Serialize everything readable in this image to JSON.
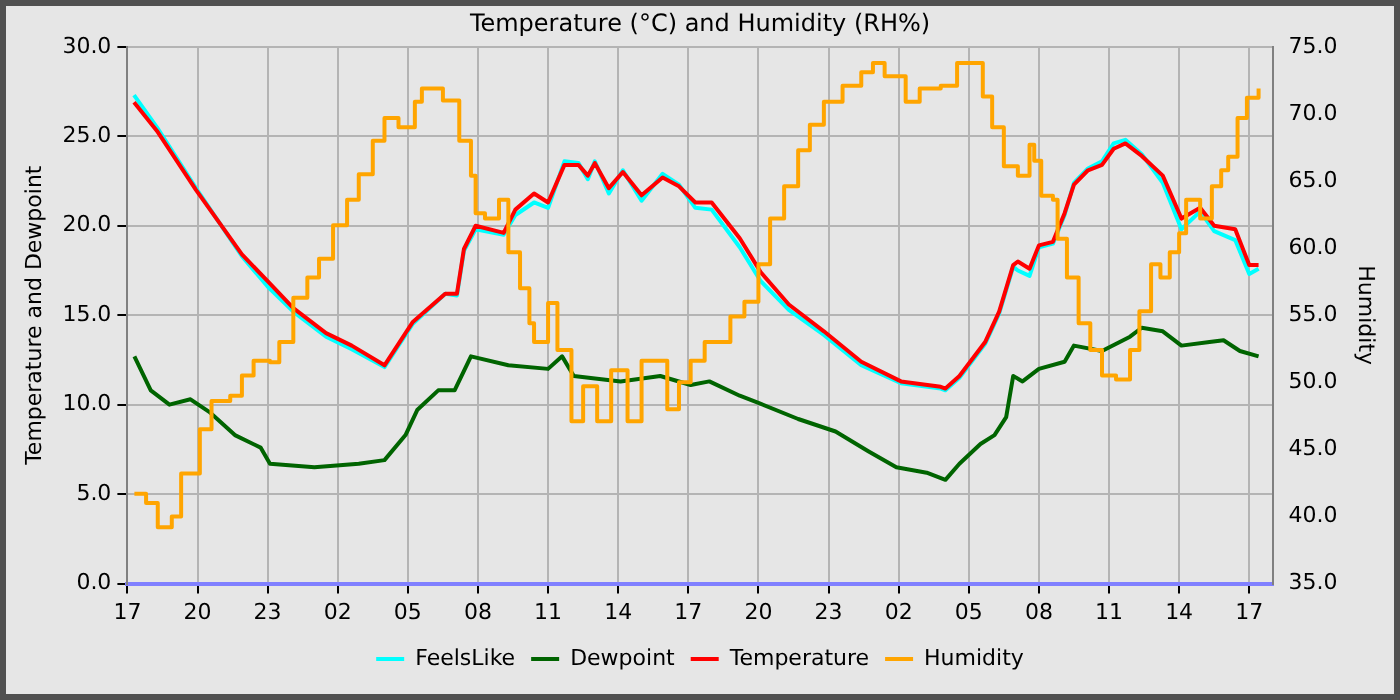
{
  "chart_data": {
    "type": "line",
    "title": "Temperature (°C) and Humidity (RH%)",
    "ylabel": "Temperature and Dewpoint",
    "y2label": "Humidity",
    "xlim": [
      "--01-01T17:00",
      "--01-03T18:00"
    ],
    "xticks": [
      {
        "value": "--01-01T17:00",
        "label": "17"
      },
      {
        "value": "--01-01T20:00",
        "label": "20"
      },
      {
        "value": "--01-01T23:00",
        "label": "23"
      },
      {
        "value": "--01-02T02:00",
        "label": "02"
      },
      {
        "value": "--01-02T05:00",
        "label": "05"
      },
      {
        "value": "--01-02T08:00",
        "label": "08"
      },
      {
        "value": "--01-02T11:00",
        "label": "11"
      },
      {
        "value": "--01-02T14:00",
        "label": "14"
      },
      {
        "value": "--01-02T17:00",
        "label": "17"
      },
      {
        "value": "--01-02T20:00",
        "label": "20"
      },
      {
        "value": "--01-02T23:00",
        "label": "23"
      },
      {
        "value": "--01-03T02:00",
        "label": "02"
      },
      {
        "value": "--01-03T05:00",
        "label": "05"
      },
      {
        "value": "--01-03T08:00",
        "label": "08"
      },
      {
        "value": "--01-03T11:00",
        "label": "11"
      },
      {
        "value": "--01-03T14:00",
        "label": "14"
      },
      {
        "value": "--01-03T17:00",
        "label": "17"
      }
    ],
    "ylim": [
      0,
      30
    ],
    "yticks": [
      {
        "value": 0,
        "label": "0.0"
      },
      {
        "value": 5,
        "label": "5.0"
      },
      {
        "value": 10,
        "label": "10.0"
      },
      {
        "value": 15,
        "label": "15.0"
      },
      {
        "value": 20,
        "label": "20.0"
      },
      {
        "value": 25,
        "label": "25.0"
      },
      {
        "value": 30,
        "label": "30.0"
      }
    ],
    "y2lim": [
      35,
      75
    ],
    "y2ticks": [
      {
        "value": 35,
        "label": "35.0"
      },
      {
        "value": 40,
        "label": "40.0"
      },
      {
        "value": 45,
        "label": "45.0"
      },
      {
        "value": 50,
        "label": "50.0"
      },
      {
        "value": 55,
        "label": "55.0"
      },
      {
        "value": 60,
        "label": "60.0"
      },
      {
        "value": 65,
        "label": "65.0"
      },
      {
        "value": 70,
        "label": "70.0"
      },
      {
        "value": 75,
        "label": "75.0"
      }
    ],
    "grid": true,
    "legend": "bottom",
    "marker": "none",
    "line_style": "solid",
    "x": [
      "--01-01T17:17",
      "--01-01T18:16",
      "--01-01T19:56",
      "--01-01T21:54",
      "--01-01T23:00",
      "--01-02T00:06",
      "--01-02T01:30",
      "--01-02T02:36",
      "--01-02T04:00",
      "--01-02T05:12",
      "--01-02T06:36",
      "--01-02T07:06",
      "--01-02T07:24",
      "--01-02T07:54",
      "--01-02T09:06",
      "--01-02T09:36",
      "--01-02T10:24",
      "--01-02T11:00",
      "--01-02T11:42",
      "--01-02T12:18",
      "--01-02T12:42",
      "--01-02T13:00",
      "--01-02T13:36",
      "--01-02T14:12",
      "--01-02T15:00",
      "--01-02T15:54",
      "--01-02T16:36",
      "--01-02T17:18",
      "--01-02T18:00",
      "--01-02T19:12",
      "--01-02T20:06",
      "--01-02T21:18",
      "--01-02T22:48",
      "--01-03T00:24",
      "--01-03T02:06",
      "--01-03T03:48",
      "--01-03T04:00",
      "--01-03T04:36",
      "--01-03T05:42",
      "--01-03T06:18",
      "--01-03T06:54",
      "--01-03T07:06",
      "--01-03T07:36",
      "--01-03T08:00",
      "--01-03T08:36",
      "--01-03T09:06",
      "--01-03T09:30",
      "--01-03T10:06",
      "--01-03T10:42",
      "--01-03T11:12",
      "--01-03T11:42",
      "--01-03T12:24",
      "--01-03T13:18",
      "--01-03T14:06",
      "--01-03T14:54",
      "--01-03T15:30",
      "--01-03T16:24",
      "--01-03T17:00",
      "--01-03T17:24"
    ],
    "series": [
      {
        "name": "FeelsLike",
        "color": "#00ffff",
        "values": [
          27.3,
          25.5,
          22.1,
          18.3,
          16.6,
          15.2,
          13.8,
          13.1,
          12.1,
          14.5,
          16.2,
          16.1,
          18.6,
          19.8,
          19.5,
          20.6,
          21.3,
          21.0,
          23.6,
          23.5,
          22.6,
          23.6,
          21.8,
          23.1,
          21.4,
          22.9,
          22.3,
          21.0,
          20.9,
          18.8,
          16.9,
          15.3,
          13.9,
          12.2,
          11.2,
          10.9,
          10.8,
          11.5,
          13.4,
          15.1,
          17.7,
          17.5,
          17.2,
          18.8,
          19.0,
          20.6,
          22.4,
          23.2,
          23.6,
          24.6,
          24.8,
          24.0,
          22.4,
          19.8,
          20.8,
          19.7,
          19.2,
          17.3,
          17.6
        ]
      },
      {
        "name": "Dewpoint",
        "color": "#006400",
        "x": [
          "--01-01T17:18",
          "--01-01T18:00",
          "--01-01T18:48",
          "--01-01T19:42",
          "--01-01T20:30",
          "--01-01T21:36",
          "--01-01T22:42",
          "--01-01T23:06",
          "--01-02T01:00",
          "--01-02T02:54",
          "--01-02T04:00",
          "--01-02T04:54",
          "--01-02T05:24",
          "--01-02T06:18",
          "--01-02T07:00",
          "--01-02T07:42",
          "--01-02T09:18",
          "--01-02T11:00",
          "--01-02T11:36",
          "--01-02T12:06",
          "--01-02T14:06",
          "--01-02T15:48",
          "--01-02T17:06",
          "--01-02T17:54",
          "--01-02T19:12",
          "--01-02T20:00",
          "--01-02T21:42",
          "--01-02T23:18",
          "--01-03T00:42",
          "--01-03T01:54",
          "--01-03T03:12",
          "--01-03T04:00",
          "--01-03T04:36",
          "--01-03T05:30",
          "--01-03T06:06",
          "--01-03T06:36",
          "--01-03T06:54",
          "--01-03T07:18",
          "--01-03T08:00",
          "--01-03T09:06",
          "--01-03T09:30",
          "--01-03T10:42",
          "--01-03T11:54",
          "--01-03T12:24",
          "--01-03T13:18",
          "--01-03T14:06",
          "--01-03T15:18",
          "--01-03T15:54",
          "--01-03T16:36",
          "--01-03T17:24"
        ],
        "values": [
          12.7,
          10.8,
          10.0,
          10.3,
          9.6,
          8.3,
          7.6,
          6.7,
          6.5,
          6.7,
          6.9,
          8.3,
          9.7,
          10.8,
          10.8,
          12.7,
          12.2,
          12.0,
          12.7,
          11.6,
          11.3,
          11.6,
          11.1,
          11.3,
          10.5,
          10.1,
          9.2,
          8.5,
          7.4,
          6.5,
          6.2,
          5.8,
          6.7,
          7.8,
          8.3,
          9.3,
          11.6,
          11.3,
          12.0,
          12.4,
          13.3,
          13.0,
          13.8,
          14.3,
          14.1,
          13.3,
          13.5,
          13.6,
          13.0,
          12.7
        ]
      },
      {
        "name": "Temperature",
        "color": "#ff0000",
        "values": [
          26.9,
          25.3,
          22.0,
          18.4,
          16.9,
          15.4,
          14.0,
          13.3,
          12.2,
          14.6,
          16.2,
          16.2,
          18.7,
          20.0,
          19.6,
          20.9,
          21.8,
          21.3,
          23.4,
          23.4,
          22.8,
          23.5,
          22.1,
          23.0,
          21.7,
          22.7,
          22.2,
          21.3,
          21.3,
          19.3,
          17.4,
          15.6,
          14.1,
          12.4,
          11.3,
          11.0,
          10.9,
          11.6,
          13.5,
          15.2,
          17.8,
          18.0,
          17.6,
          18.9,
          19.1,
          20.7,
          22.3,
          23.1,
          23.4,
          24.3,
          24.6,
          23.9,
          22.8,
          20.4,
          21.0,
          20.0,
          19.8,
          17.8,
          17.8
        ]
      },
      {
        "name": "Humidity",
        "type": "step",
        "axis": "y2",
        "color": "#ffa500",
        "x": [
          "--01-01T17:18",
          "--01-01T17:48",
          "--01-01T18:18",
          "--01-01T18:54",
          "--01-01T19:18",
          "--01-01T20:06",
          "--01-01T20:36",
          "--01-01T21:24",
          "--01-01T21:54",
          "--01-01T22:24",
          "--01-01T23:06",
          "--01-01T23:30",
          "--01-02T00:06",
          "--01-02T00:42",
          "--01-02T01:12",
          "--01-02T01:48",
          "--01-02T02:24",
          "--01-02T02:54",
          "--01-02T03:30",
          "--01-02T04:00",
          "--01-02T04:36",
          "--01-02T05:18",
          "--01-02T05:36",
          "--01-02T06:12",
          "--01-02T06:30",
          "--01-02T07:00",
          "--01-02T07:12",
          "--01-02T07:42",
          "--01-02T07:54",
          "--01-02T08:18",
          "--01-02T08:54",
          "--01-02T09:18",
          "--01-02T09:48",
          "--01-02T10:12",
          "--01-02T10:24",
          "--01-02T11:00",
          "--01-02T11:24",
          "--01-02T12:00",
          "--01-02T12:30",
          "--01-02T13:06",
          "--01-02T13:42",
          "--01-02T14:24",
          "--01-02T15:00",
          "--01-02T15:36",
          "--01-02T16:06",
          "--01-02T16:36",
          "--01-02T17:06",
          "--01-02T17:42",
          "--01-02T18:24",
          "--01-02T18:48",
          "--01-02T19:24",
          "--01-02T20:00",
          "--01-02T20:30",
          "--01-02T21:06",
          "--01-02T21:42",
          "--01-02T22:12",
          "--01-02T22:48",
          "--01-02T23:36",
          "--01-03T00:24",
          "--01-03T00:54",
          "--01-03T01:24",
          "--01-03T02:18",
          "--01-03T02:54",
          "--01-03T03:48",
          "--01-03T04:30",
          "--01-03T05:12",
          "--01-03T05:36",
          "--01-03T06:00",
          "--01-03T06:30",
          "--01-03T07:06",
          "--01-03T07:36",
          "--01-03T07:48",
          "--01-03T08:06",
          "--01-03T08:36",
          "--01-03T08:48",
          "--01-03T09:12",
          "--01-03T09:42",
          "--01-03T10:12",
          "--01-03T10:42",
          "--01-03T11:18",
          "--01-03T11:54",
          "--01-03T12:18",
          "--01-03T12:48",
          "--01-03T13:12",
          "--01-03T13:36",
          "--01-03T14:00",
          "--01-03T14:18",
          "--01-03T14:42",
          "--01-03T14:54",
          "--01-03T15:24",
          "--01-03T15:48",
          "--01-03T16:06",
          "--01-03T16:30",
          "--01-03T16:54",
          "--01-03T17:24"
        ],
        "values": [
          41.7,
          41.0,
          39.2,
          40.0,
          43.2,
          46.5,
          48.6,
          49.0,
          50.5,
          51.6,
          51.5,
          53.0,
          56.3,
          57.8,
          59.2,
          61.7,
          63.6,
          65.5,
          68.0,
          69.7,
          69.0,
          70.9,
          71.9,
          71.9,
          71.0,
          71.0,
          68.0,
          65.4,
          62.6,
          62.2,
          63.6,
          59.7,
          57.0,
          54.4,
          53.0,
          55.9,
          52.4,
          47.1,
          49.7,
          47.1,
          50.9,
          47.1,
          51.6,
          51.6,
          48.0,
          50.0,
          51.6,
          53.0,
          53.0,
          54.9,
          56.0,
          58.8,
          62.2,
          64.6,
          67.3,
          69.2,
          70.9,
          72.1,
          73.1,
          73.8,
          72.8,
          70.9,
          71.9,
          72.1,
          73.8,
          73.8,
          71.3,
          69.0,
          66.1,
          65.4,
          67.7,
          66.5,
          63.9,
          63.6,
          60.7,
          57.8,
          54.4,
          52.4,
          50.5,
          50.2,
          52.4,
          55.3,
          58.8,
          57.8,
          59.7,
          61.1,
          63.6,
          63.6,
          62.2,
          64.6,
          65.8,
          66.8,
          69.7,
          71.2,
          71.9
        ]
      }
    ]
  }
}
